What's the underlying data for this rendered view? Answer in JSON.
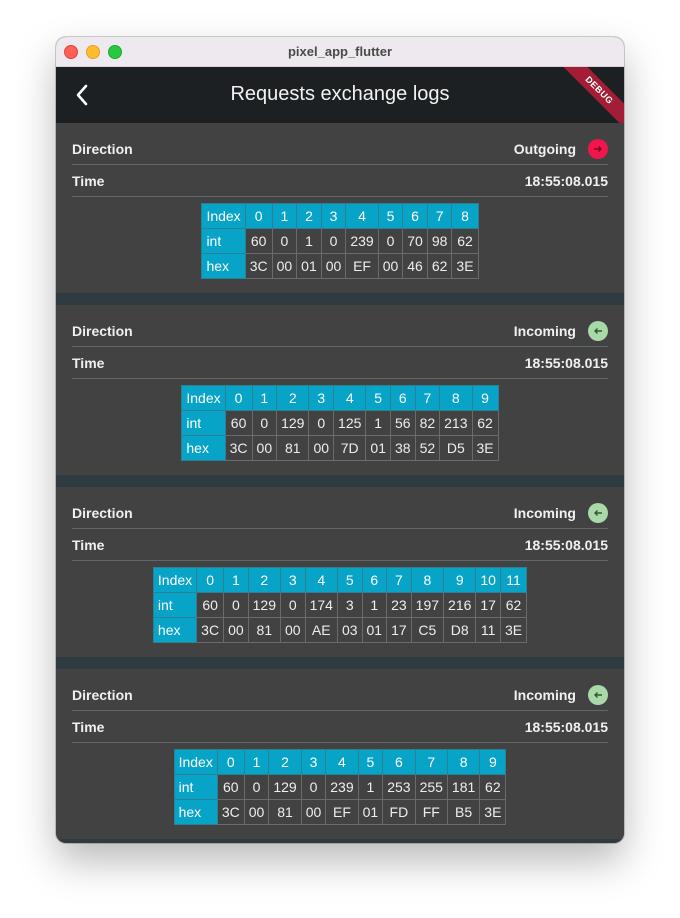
{
  "window": {
    "title": "pixel_app_flutter"
  },
  "appbar": {
    "title": "Requests exchange logs",
    "debug_banner": "DEBUG"
  },
  "labels": {
    "direction": "Direction",
    "time": "Time",
    "index": "Index",
    "int": "int",
    "hex": "hex"
  },
  "colors": {
    "outgoing": "#f0164d",
    "incoming": "#a9d8a9",
    "table_header": "#07a4c8",
    "card": "#424242"
  },
  "logs": [
    {
      "direction": "Outgoing",
      "icon": "arrow-right-icon",
      "time": "18:55:08.015",
      "index": [
        "0",
        "1",
        "2",
        "3",
        "4",
        "5",
        "6",
        "7",
        "8"
      ],
      "int": [
        "60",
        "0",
        "1",
        "0",
        "239",
        "0",
        "70",
        "98",
        "62"
      ],
      "hex": [
        "3C",
        "00",
        "01",
        "00",
        "EF",
        "00",
        "46",
        "62",
        "3E"
      ]
    },
    {
      "direction": "Incoming",
      "icon": "arrow-left-icon",
      "time": "18:55:08.015",
      "index": [
        "0",
        "1",
        "2",
        "3",
        "4",
        "5",
        "6",
        "7",
        "8",
        "9"
      ],
      "int": [
        "60",
        "0",
        "129",
        "0",
        "125",
        "1",
        "56",
        "82",
        "213",
        "62"
      ],
      "hex": [
        "3C",
        "00",
        "81",
        "00",
        "7D",
        "01",
        "38",
        "52",
        "D5",
        "3E"
      ]
    },
    {
      "direction": "Incoming",
      "icon": "arrow-left-icon",
      "time": "18:55:08.015",
      "index": [
        "0",
        "1",
        "2",
        "3",
        "4",
        "5",
        "6",
        "7",
        "8",
        "9",
        "10",
        "11"
      ],
      "int": [
        "60",
        "0",
        "129",
        "0",
        "174",
        "3",
        "1",
        "23",
        "197",
        "216",
        "17",
        "62"
      ],
      "hex": [
        "3C",
        "00",
        "81",
        "00",
        "AE",
        "03",
        "01",
        "17",
        "C5",
        "D8",
        "11",
        "3E"
      ]
    },
    {
      "direction": "Incoming",
      "icon": "arrow-left-icon",
      "time": "18:55:08.015",
      "index": [
        "0",
        "1",
        "2",
        "3",
        "4",
        "5",
        "6",
        "7",
        "8",
        "9"
      ],
      "int": [
        "60",
        "0",
        "129",
        "0",
        "239",
        "1",
        "253",
        "255",
        "181",
        "62"
      ],
      "hex": [
        "3C",
        "00",
        "81",
        "00",
        "EF",
        "01",
        "FD",
        "FF",
        "B5",
        "3E"
      ]
    }
  ]
}
